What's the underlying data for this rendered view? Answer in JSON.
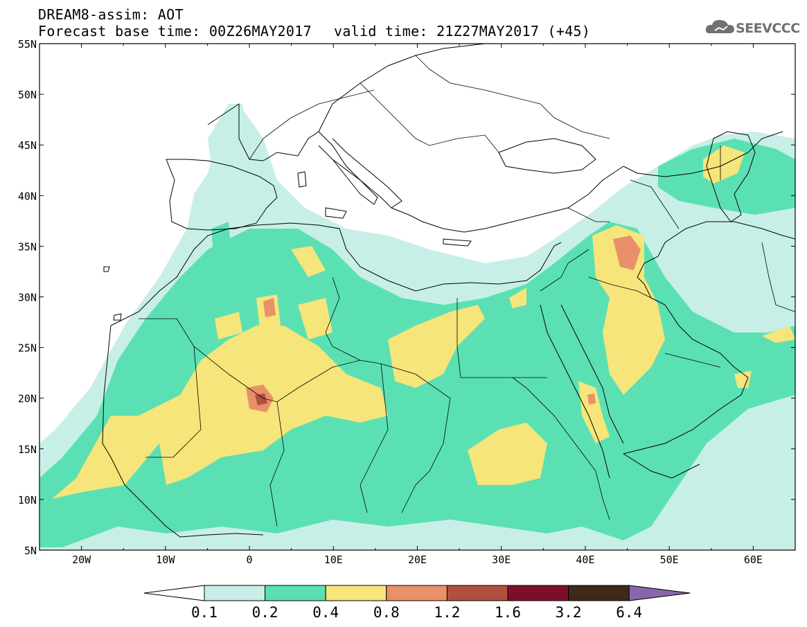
{
  "header": {
    "title_line1": "DREAM8-assim: AOT",
    "title_line2": "Forecast base time: 00Z26MAY2017",
    "valid": "valid time: 21Z27MAY2017 (+45)",
    "logo_text": "SEEVCCC"
  },
  "axes": {
    "lat_labels": [
      "55N",
      "50N",
      "45N",
      "40N",
      "35N",
      "30N",
      "25N",
      "20N",
      "15N",
      "10N",
      "5N"
    ],
    "lon_labels": [
      "20W",
      "10W",
      "0",
      "10E",
      "20E",
      "30E",
      "40E",
      "50E",
      "60E"
    ]
  },
  "colorbar": {
    "labels": [
      "0.1",
      "0.2",
      "0.4",
      "0.8",
      "1.2",
      "1.6",
      "3.2",
      "6.4"
    ],
    "colors": [
      "#ffffff",
      "#c7efe8",
      "#5be0b4",
      "#f5e57a",
      "#e9906a",
      "#b0503e",
      "#7e0f2c",
      "#3e2a1a",
      "#8866aa"
    ]
  },
  "map": {
    "lon_range": [
      -25,
      65
    ],
    "lat_range": [
      5,
      55
    ],
    "level_colors": {
      "0.1": "#c7efe8",
      "0.2": "#5be0b4",
      "0.4": "#f5e57a",
      "0.8": "#e9906a",
      "1.2": "#b0503e"
    }
  }
}
